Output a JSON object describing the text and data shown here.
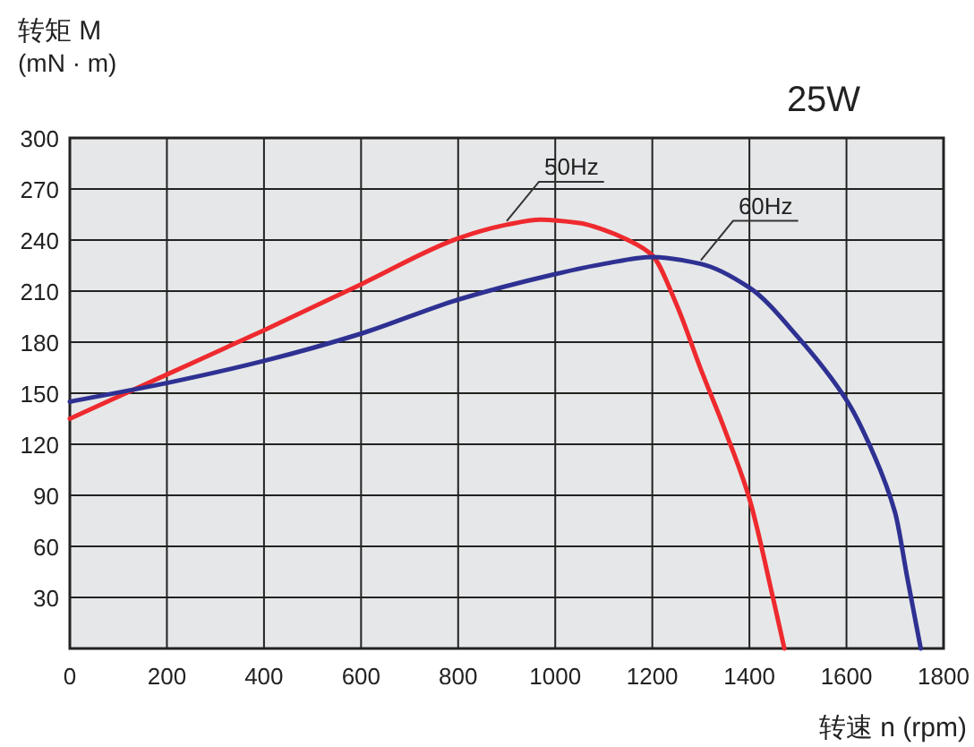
{
  "chart_data": {
    "type": "line",
    "title": "25W",
    "xlabel": "转速 n (rpm)",
    "ylabel": "转矩 M\n(mN · m)",
    "xlim": [
      0,
      1800
    ],
    "ylim": [
      0,
      300
    ],
    "xticks": [
      0,
      200,
      400,
      600,
      800,
      1000,
      1200,
      1400,
      1600,
      1800
    ],
    "yticks": [
      30,
      60,
      90,
      120,
      150,
      180,
      210,
      240,
      270,
      300
    ],
    "grid": true,
    "series": [
      {
        "name": "50Hz",
        "color": "#ee2a2e",
        "x": [
          0,
          200,
          400,
          600,
          800,
          900,
          970,
          1050,
          1100,
          1150,
          1200,
          1250,
          1300,
          1350,
          1400,
          1450,
          1472
        ],
        "values": [
          135,
          161,
          187,
          214,
          241,
          249,
          252,
          250,
          246,
          240,
          231,
          202,
          164,
          128,
          88,
          28,
          0
        ]
      },
      {
        "name": "60Hz",
        "color": "#2e3192",
        "x": [
          0,
          200,
          400,
          600,
          800,
          1000,
          1100,
          1200,
          1300,
          1400,
          1500,
          1600,
          1650,
          1700,
          1725,
          1753
        ],
        "values": [
          145,
          156,
          169,
          185,
          205,
          220,
          226,
          230,
          226,
          212,
          183,
          146,
          118,
          80,
          42,
          0
        ]
      }
    ]
  }
}
